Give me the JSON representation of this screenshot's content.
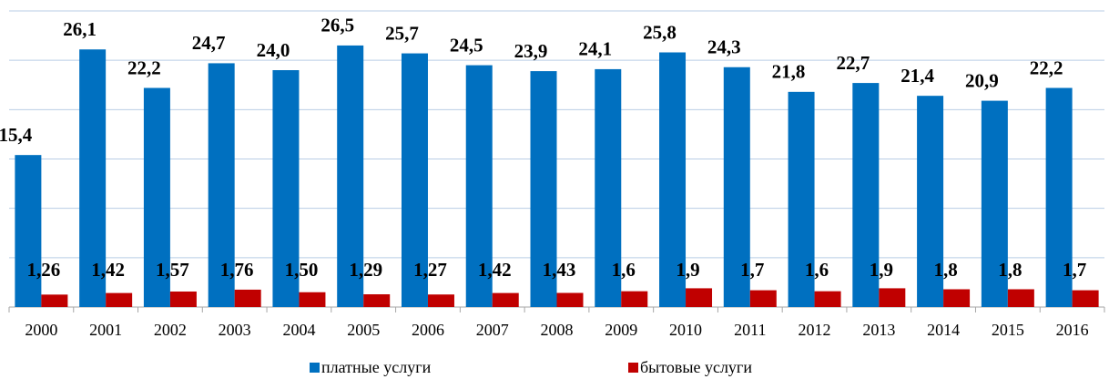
{
  "chart_data": {
    "type": "bar",
    "categories": [
      "2000",
      "2001",
      "2002",
      "2003",
      "2004",
      "2005",
      "2006",
      "2007",
      "2008",
      "2009",
      "2010",
      "2011",
      "2012",
      "2013",
      "2014",
      "2015",
      "2016"
    ],
    "series": [
      {
        "name": "платные услуги",
        "color": "#0070c0",
        "values": [
          15.4,
          26.1,
          22.2,
          24.7,
          24.0,
          26.5,
          25.7,
          24.5,
          23.9,
          24.1,
          25.8,
          24.3,
          21.8,
          22.7,
          21.4,
          20.9,
          22.2
        ],
        "value_labels": [
          "15,4",
          "26,1",
          "22,2",
          "24,7",
          "24,0",
          "26,5",
          "25,7",
          "24,5",
          "23,9",
          "24,1",
          "25,8",
          "24,3",
          "21,8",
          "22,7",
          "21,4",
          "20,9",
          "22,2"
        ]
      },
      {
        "name": "бытовые услуги",
        "color": "#c00000",
        "values": [
          1.26,
          1.42,
          1.57,
          1.76,
          1.5,
          1.29,
          1.27,
          1.42,
          1.43,
          1.6,
          1.9,
          1.7,
          1.6,
          1.9,
          1.8,
          1.8,
          1.7
        ],
        "value_labels": [
          "1,26",
          "1,42",
          "1,57",
          "1,76",
          "1,50",
          "1,29",
          "1,27",
          "1,42",
          "1,43",
          "1,6",
          "1,9",
          "1,7",
          "1,6",
          "1,9",
          "1,8",
          "1,8",
          "1,7"
        ]
      }
    ],
    "ylim": [
      0,
      30
    ],
    "yticks": [
      0,
      5,
      10,
      15,
      20,
      25,
      30
    ],
    "grid": true,
    "legend": "bottom"
  }
}
